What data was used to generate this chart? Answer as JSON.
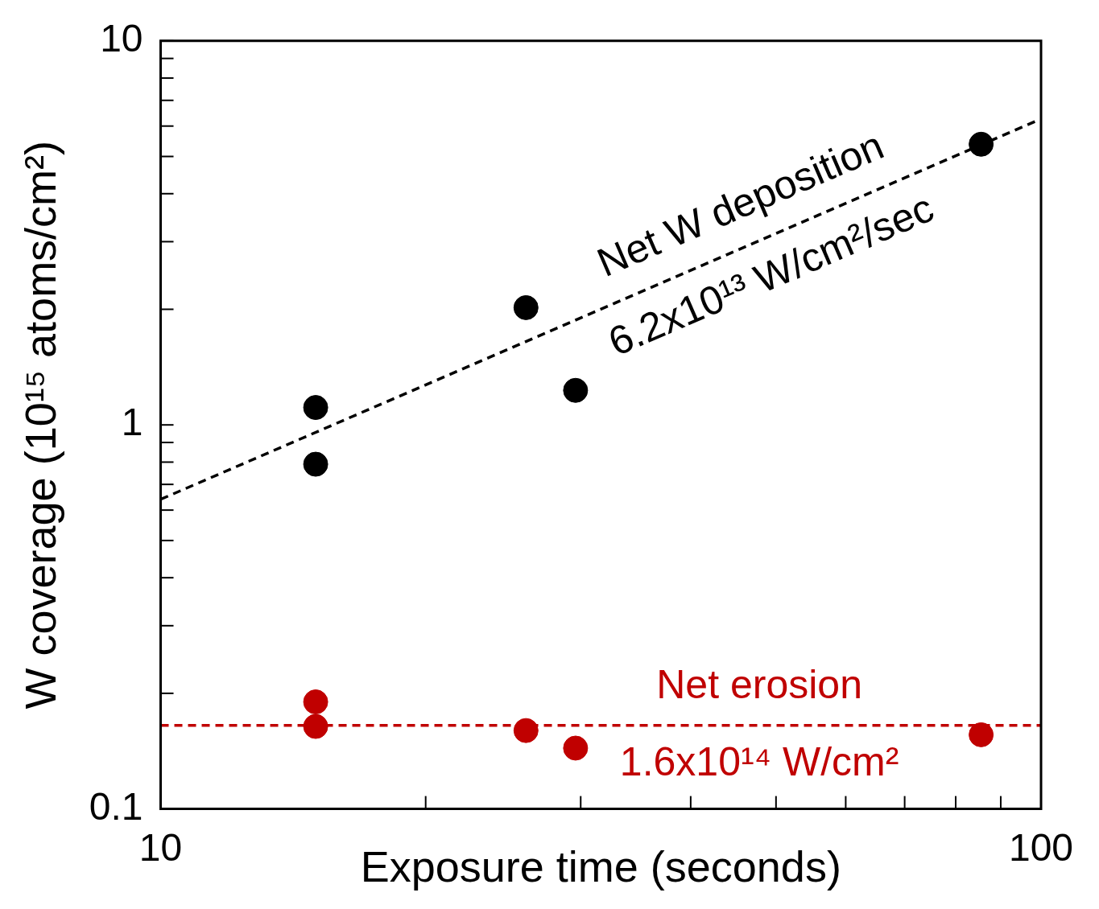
{
  "chart_data": {
    "type": "scatter",
    "xlabel": "Exposure time (seconds)",
    "ylabel": "W coverage (10¹⁵ atoms/cm²)",
    "log": "xy",
    "xlim": [
      10,
      100
    ],
    "ylim": [
      0.1,
      10
    ],
    "xticks": [
      10,
      {
        "value": 20,
        "label": null
      },
      {
        "value": 30,
        "label": null
      },
      {
        "value": 40,
        "label": null
      },
      {
        "value": 50,
        "label": null
      },
      {
        "value": 60,
        "label": null
      },
      {
        "value": 70,
        "label": null
      },
      {
        "value": 80,
        "label": null
      },
      {
        "value": 90,
        "label": null
      },
      100
    ],
    "yticks": [
      0.1,
      {
        "value": 0.2,
        "label": null
      },
      {
        "value": 0.3,
        "label": null
      },
      {
        "value": 0.4,
        "label": null
      },
      {
        "value": 0.5,
        "label": null
      },
      {
        "value": 0.6,
        "label": null
      },
      {
        "value": 0.7,
        "label": null
      },
      {
        "value": 0.8,
        "label": null
      },
      {
        "value": 0.9,
        "label": null
      },
      1,
      {
        "value": 2,
        "label": null
      },
      {
        "value": 3,
        "label": null
      },
      {
        "value": 4,
        "label": null
      },
      {
        "value": 5,
        "label": null
      },
      {
        "value": 6,
        "label": null
      },
      {
        "value": 7,
        "label": null
      },
      {
        "value": 8,
        "label": null
      },
      {
        "value": 9,
        "label": null
      },
      10
    ],
    "grid": false,
    "legend": false,
    "series": [
      {
        "type": "scatter",
        "color": "#000000",
        "marker": "circle",
        "x": [
          15,
          15,
          26,
          29.6,
          85.5
        ],
        "values": [
          1.11,
          0.79,
          2.02,
          1.23,
          5.38
        ]
      },
      {
        "type": "scatter",
        "color": "#c00000",
        "marker": "circle",
        "x": [
          15,
          15,
          26,
          29.6,
          85.5
        ],
        "values": [
          0.19,
          0.164,
          0.16,
          0.144,
          0.156
        ]
      },
      {
        "type": "line",
        "color": "#000000",
        "marker": "none",
        "line_style": "dashed",
        "x": [
          10,
          99
        ],
        "values": [
          0.64,
          6.2
        ]
      },
      {
        "type": "line",
        "color": "#c00000",
        "marker": "none",
        "line_style": "dashed",
        "x": [
          10,
          100
        ],
        "values": [
          0.165,
          0.165
        ]
      }
    ],
    "annotations": [
      "Net W deposition",
      "6.2x10¹³ W/cm²/sec",
      "Net erosion",
      "1.6x10¹⁴ W/cm²"
    ]
  }
}
